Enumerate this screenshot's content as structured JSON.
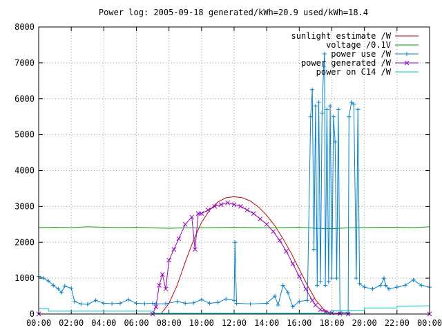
{
  "chart_data": {
    "type": "line",
    "title": "Power log: 2005-09-18 generated/kWh=20.9 used/kWh=18.4",
    "xlabel": "",
    "ylabel": "",
    "xlim": [
      "00:00",
      "24:00"
    ],
    "ylim": [
      0,
      8000
    ],
    "x_ticks": [
      "00:00",
      "02:00",
      "04:00",
      "06:00",
      "08:00",
      "10:00",
      "12:00",
      "14:00",
      "16:00",
      "18:00",
      "20:00",
      "22:00",
      "00:00"
    ],
    "y_ticks": [
      0,
      1000,
      2000,
      3000,
      4000,
      5000,
      6000,
      7000,
      8000
    ],
    "y_tick_labels": [
      "0",
      "1000",
      "2000",
      "3000",
      "4000",
      "5000",
      "6000",
      "7000",
      "8000"
    ],
    "grid": true,
    "legend_position": "top-right",
    "series": [
      {
        "name": "sunlight estimate /W",
        "color": "#cc0000",
        "marker": "none",
        "points": [
          [
            7.5,
            0
          ],
          [
            8,
            300
          ],
          [
            8.5,
            800
          ],
          [
            9,
            1450
          ],
          [
            9.5,
            2050
          ],
          [
            10,
            2550
          ],
          [
            10.5,
            2900
          ],
          [
            11,
            3120
          ],
          [
            11.5,
            3240
          ],
          [
            12,
            3270
          ],
          [
            12.5,
            3240
          ],
          [
            13,
            3150
          ],
          [
            13.5,
            2980
          ],
          [
            14,
            2750
          ],
          [
            14.5,
            2460
          ],
          [
            15,
            2100
          ],
          [
            15.5,
            1700
          ],
          [
            16,
            1250
          ],
          [
            16.5,
            800
          ],
          [
            17,
            400
          ],
          [
            17.5,
            130
          ],
          [
            18,
            0
          ]
        ]
      },
      {
        "name": "voltage /0.1V",
        "color": "#009900",
        "marker": "none",
        "points": [
          [
            0,
            2410
          ],
          [
            1,
            2420
          ],
          [
            2,
            2410
          ],
          [
            3,
            2430
          ],
          [
            4,
            2420
          ],
          [
            5,
            2410
          ],
          [
            6,
            2420
          ],
          [
            7,
            2400
          ],
          [
            8,
            2390
          ],
          [
            9,
            2400
          ],
          [
            10,
            2400
          ],
          [
            11,
            2410
          ],
          [
            12,
            2420
          ],
          [
            13,
            2410
          ],
          [
            14,
            2400
          ],
          [
            15,
            2410
          ],
          [
            16,
            2420
          ],
          [
            17,
            2390
          ],
          [
            18,
            2380
          ],
          [
            19,
            2400
          ],
          [
            20,
            2410
          ],
          [
            21,
            2420
          ],
          [
            22,
            2420
          ],
          [
            23,
            2410
          ],
          [
            24,
            2430
          ]
        ]
      },
      {
        "name": "power use /W",
        "color": "#0080e0",
        "marker": "plus",
        "points": [
          [
            0,
            1050
          ],
          [
            0.3,
            1000
          ],
          [
            0.6,
            920
          ],
          [
            0.9,
            800
          ],
          [
            1.2,
            700
          ],
          [
            1.4,
            600
          ],
          [
            1.6,
            780
          ],
          [
            2,
            720
          ],
          [
            2.2,
            350
          ],
          [
            2.6,
            280
          ],
          [
            3,
            270
          ],
          [
            3.5,
            380
          ],
          [
            4,
            300
          ],
          [
            4.5,
            290
          ],
          [
            5,
            300
          ],
          [
            5.5,
            400
          ],
          [
            6,
            300
          ],
          [
            6.5,
            290
          ],
          [
            7,
            300
          ],
          [
            7.2,
            280
          ],
          [
            7.8,
            290
          ],
          [
            8.5,
            350
          ],
          [
            9,
            300
          ],
          [
            9.5,
            310
          ],
          [
            10,
            400
          ],
          [
            10.5,
            300
          ],
          [
            11,
            320
          ],
          [
            11.5,
            420
          ],
          [
            12,
            380
          ],
          [
            12.05,
            2000
          ],
          [
            12.15,
            300
          ],
          [
            13,
            280
          ],
          [
            14,
            300
          ],
          [
            14.5,
            500
          ],
          [
            14.7,
            250
          ],
          [
            15,
            800
          ],
          [
            15.3,
            600
          ],
          [
            15.6,
            200
          ],
          [
            16,
            350
          ],
          [
            16.5,
            380
          ],
          [
            16.7,
            5500
          ],
          [
            16.8,
            6250
          ],
          [
            16.9,
            1800
          ],
          [
            17,
            5800
          ],
          [
            17.1,
            800
          ],
          [
            17.2,
            5900
          ],
          [
            17.3,
            900
          ],
          [
            17.4,
            5600
          ],
          [
            17.5,
            6900
          ],
          [
            17.55,
            7250
          ],
          [
            17.6,
            800
          ],
          [
            17.7,
            5700
          ],
          [
            17.8,
            900
          ],
          [
            17.9,
            5800
          ],
          [
            18,
            1000
          ],
          [
            18.1,
            5500
          ],
          [
            18.2,
            4800
          ],
          [
            18.3,
            1000
          ],
          [
            18.4,
            5700
          ],
          [
            18.5,
            50
          ],
          [
            19,
            30
          ],
          [
            19.05,
            5500
          ],
          [
            19.2,
            5900
          ],
          [
            19.35,
            5850
          ],
          [
            19.5,
            1000
          ],
          [
            19.6,
            5700
          ],
          [
            19.7,
            850
          ],
          [
            20,
            750
          ],
          [
            20.5,
            700
          ],
          [
            21,
            800
          ],
          [
            21.2,
            1000
          ],
          [
            21.3,
            800
          ],
          [
            21.5,
            700
          ],
          [
            22,
            750
          ],
          [
            22.5,
            800
          ],
          [
            23,
            950
          ],
          [
            23.5,
            800
          ],
          [
            24,
            750
          ]
        ]
      },
      {
        "name": "power generated /W",
        "color": "#9900cc",
        "marker": "cross",
        "points": [
          [
            0,
            0
          ],
          [
            7,
            0
          ],
          [
            7.2,
            200
          ],
          [
            7.4,
            800
          ],
          [
            7.6,
            1100
          ],
          [
            7.8,
            700
          ],
          [
            8,
            1500
          ],
          [
            8.3,
            1800
          ],
          [
            8.6,
            2100
          ],
          [
            9,
            2500
          ],
          [
            9.4,
            2700
          ],
          [
            9.6,
            1800
          ],
          [
            9.8,
            2800
          ],
          [
            10,
            2800
          ],
          [
            10.4,
            2900
          ],
          [
            10.8,
            3000
          ],
          [
            11.2,
            3050
          ],
          [
            11.6,
            3100
          ],
          [
            12,
            3050
          ],
          [
            12.4,
            3000
          ],
          [
            12.8,
            2900
          ],
          [
            13.2,
            2800
          ],
          [
            13.6,
            2650
          ],
          [
            14,
            2500
          ],
          [
            14.4,
            2300
          ],
          [
            14.8,
            2050
          ],
          [
            15.2,
            1750
          ],
          [
            15.6,
            1400
          ],
          [
            16,
            1050
          ],
          [
            16.4,
            700
          ],
          [
            16.8,
            380
          ],
          [
            17,
            250
          ],
          [
            17.3,
            120
          ],
          [
            17.6,
            60
          ],
          [
            18,
            30
          ],
          [
            18.5,
            10
          ],
          [
            19,
            0
          ],
          [
            24,
            0
          ]
        ]
      },
      {
        "name": "power on C14 /W",
        "color": "#00c8c8",
        "marker": "none",
        "points": [
          [
            0,
            150
          ],
          [
            0.6,
            150
          ],
          [
            0.6,
            80
          ],
          [
            7,
            80
          ],
          [
            7,
            20
          ],
          [
            18,
            20
          ],
          [
            18,
            100
          ],
          [
            20,
            100
          ],
          [
            20,
            170
          ],
          [
            22,
            170
          ],
          [
            22,
            220
          ],
          [
            24,
            230
          ]
        ]
      }
    ]
  }
}
